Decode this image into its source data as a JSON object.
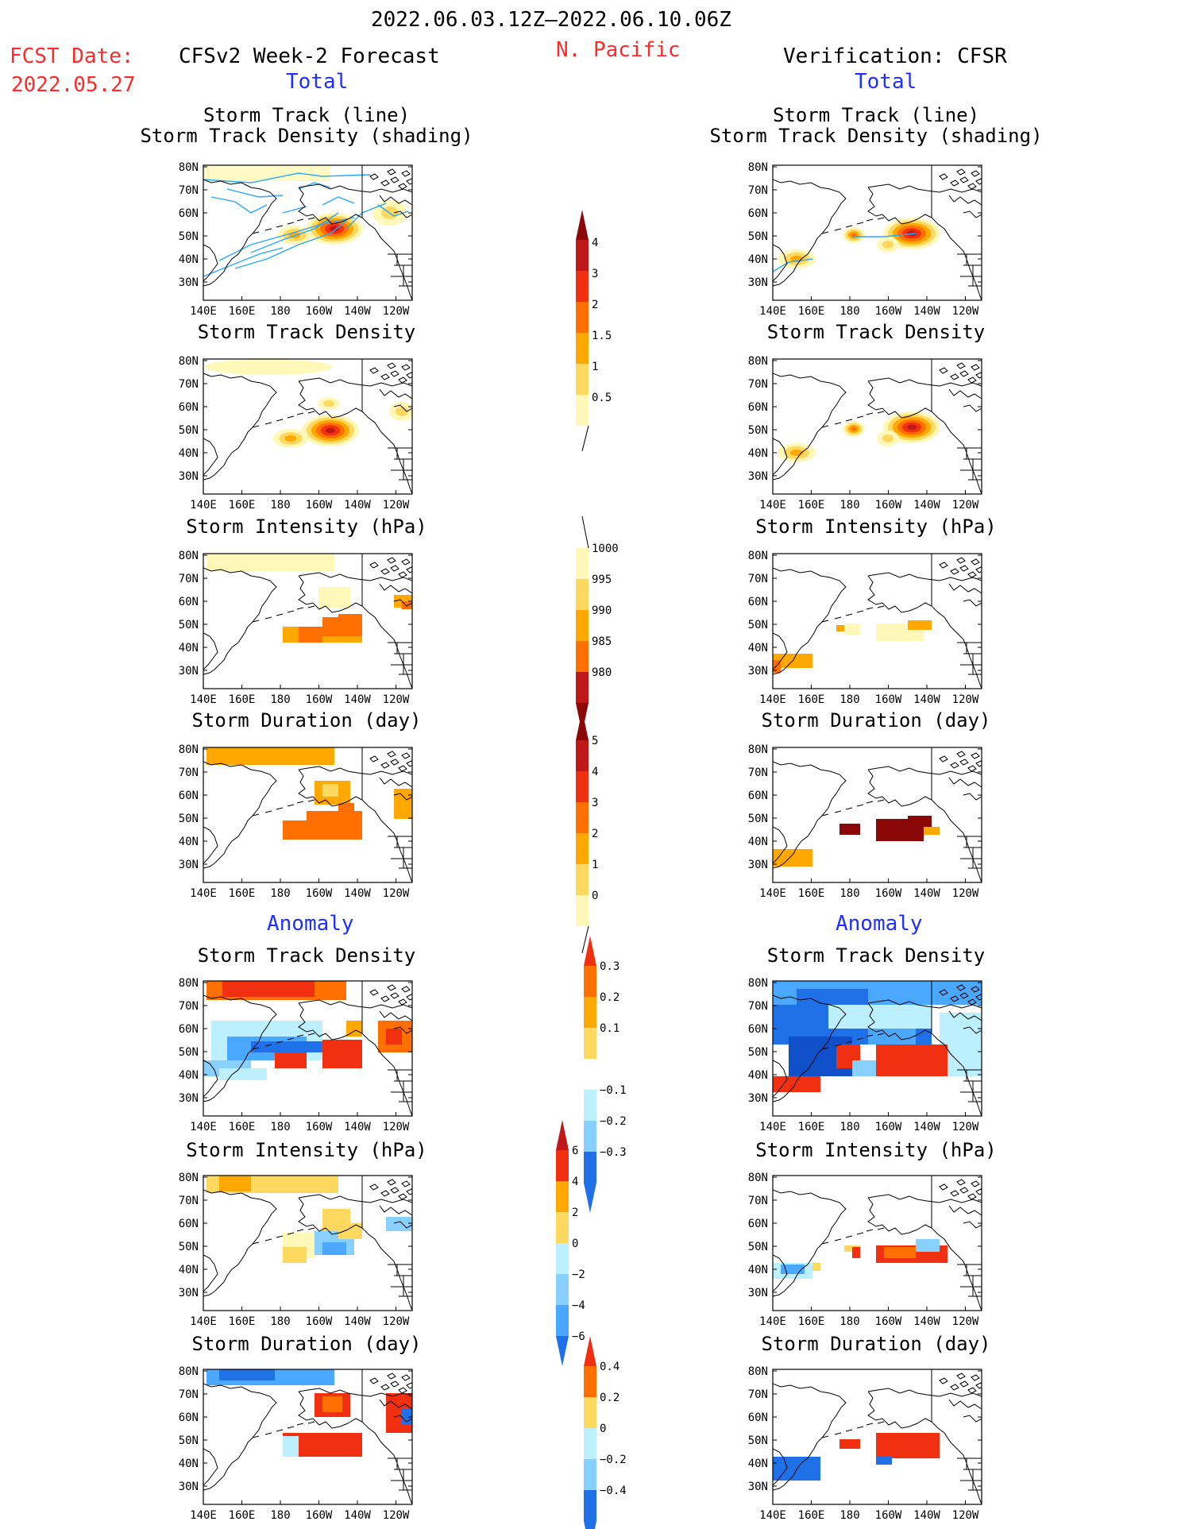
{
  "header": {
    "date_range": "2022.06.03.12Z–2022.06.10.06Z",
    "region": "N. Pacific",
    "fcst_label": "FCST Date:",
    "fcst_date": "2022.05.27",
    "left_title": "CFSv2 Week-2 Forecast",
    "right_title": "Verification: CFSR",
    "total_label": "Total",
    "anomaly_label": "Anomaly"
  },
  "panel_titles": {
    "track_line": "Storm Track (line)",
    "track_shading": "Storm Track Density (shading)",
    "density": "Storm Track Density",
    "intensity": "Storm Intensity (hPa)",
    "duration": "Storm Duration (day)"
  },
  "axes": {
    "lat_ticks": [
      "80N",
      "70N",
      "60N",
      "50N",
      "40N",
      "30N"
    ],
    "lon_ticks": [
      "140E",
      "160E",
      "180",
      "160W",
      "140W",
      "120W"
    ]
  },
  "colors": {
    "warm": [
      "#fff8b8",
      "#ffd860",
      "#ffa800",
      "#ff7000",
      "#f03010",
      "#c01818",
      "#8a0808"
    ],
    "cool": [
      "#bdf0ff",
      "#88d0ff",
      "#4aa8ff",
      "#2070e8",
      "#1050c8"
    ],
    "track_line": "#29a8ff"
  },
  "colorbars": [
    {
      "name": "density-total",
      "labels": [
        "4",
        "3",
        "2",
        "1.5",
        "1",
        "0.5"
      ]
    },
    {
      "name": "intensity-total",
      "labels": [
        "1000",
        "995",
        "990",
        "985",
        "980"
      ]
    },
    {
      "name": "duration-total",
      "labels": [
        "5",
        "4",
        "3",
        "2",
        "1",
        "0"
      ]
    },
    {
      "name": "density-anom",
      "labels": [
        "0.3",
        "0.2",
        "0.1",
        "−0.1",
        "−0.2",
        "−0.3"
      ]
    },
    {
      "name": "intensity-anom",
      "labels": [
        "6",
        "4",
        "2",
        "0",
        "−2",
        "−4",
        "−6"
      ]
    },
    {
      "name": "duration-anom",
      "labels": [
        "0.4",
        "0.2",
        "0",
        "−0.2",
        "−0.4"
      ]
    }
  ]
}
